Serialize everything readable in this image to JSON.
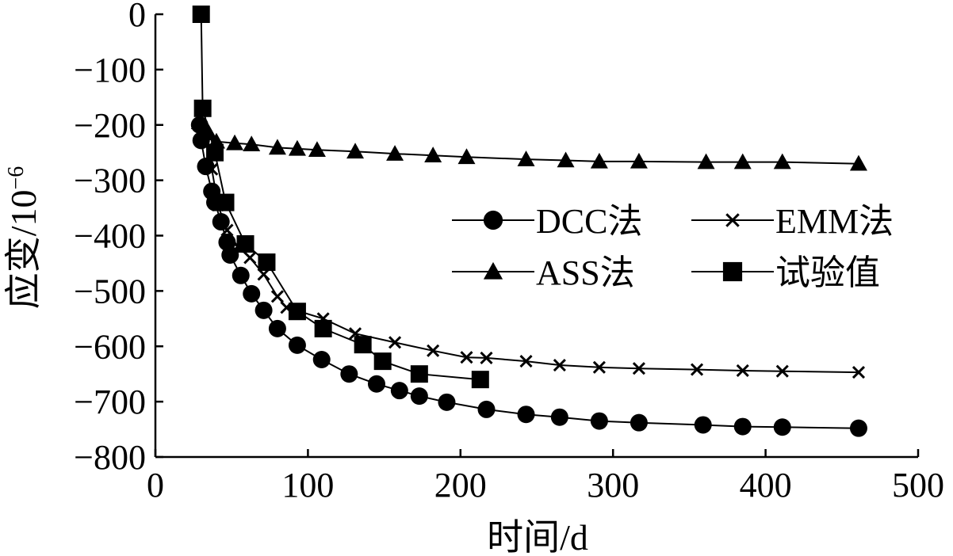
{
  "chart_data": {
    "type": "line",
    "xlabel": "时间/d",
    "ylabel_base": "应变/10",
    "ylabel_exp": "−6",
    "xlim": [
      0,
      500
    ],
    "ylim": [
      -800,
      0
    ],
    "x_ticks": [
      0,
      100,
      200,
      300,
      400,
      500
    ],
    "y_ticks": [
      0,
      -100,
      -200,
      -300,
      -400,
      -500,
      -600,
      -700,
      -800
    ],
    "x_tick_labels": [
      "0",
      "100",
      "200",
      "300",
      "400",
      "500"
    ],
    "y_tick_labels": [
      "0",
      "−100",
      "−200",
      "−300",
      "−400",
      "−500",
      "−600",
      "−700",
      "−800"
    ],
    "grid": false,
    "legend_position": "center-right",
    "series": [
      {
        "name": "DCC法",
        "marker": "circle",
        "color": "#000000",
        "points": [
          [
            29,
            -200
          ],
          [
            30,
            -228
          ],
          [
            33,
            -275
          ],
          [
            37,
            -320
          ],
          [
            39,
            -340
          ],
          [
            43,
            -375
          ],
          [
            47,
            -412
          ],
          [
            49,
            -435
          ],
          [
            56,
            -472
          ],
          [
            63,
            -505
          ],
          [
            71,
            -535
          ],
          [
            80,
            -568
          ],
          [
            93,
            -598
          ],
          [
            109,
            -624
          ],
          [
            127,
            -650
          ],
          [
            145,
            -668
          ],
          [
            160,
            -680
          ],
          [
            173,
            -690
          ],
          [
            191,
            -701
          ],
          [
            217,
            -714
          ],
          [
            243,
            -723
          ],
          [
            265,
            -728
          ],
          [
            291,
            -735
          ],
          [
            317,
            -738
          ],
          [
            359,
            -742
          ],
          [
            385,
            -745
          ],
          [
            411,
            -746
          ],
          [
            461,
            -748
          ]
        ]
      },
      {
        "name": "EMM法",
        "marker": "x",
        "color": "#000000",
        "points": [
          [
            29,
            -200
          ],
          [
            30,
            -210
          ],
          [
            33,
            -230
          ],
          [
            37,
            -280
          ],
          [
            41,
            -345
          ],
          [
            47,
            -390
          ],
          [
            54,
            -420
          ],
          [
            62,
            -440
          ],
          [
            71,
            -470
          ],
          [
            80,
            -510
          ],
          [
            86,
            -530
          ],
          [
            110,
            -550
          ],
          [
            131,
            -577
          ],
          [
            157,
            -593
          ],
          [
            182,
            -608
          ],
          [
            204,
            -620
          ],
          [
            217,
            -621
          ],
          [
            243,
            -627
          ],
          [
            265,
            -634
          ],
          [
            291,
            -638
          ],
          [
            317,
            -640
          ],
          [
            355,
            -642
          ],
          [
            385,
            -644
          ],
          [
            411,
            -645
          ],
          [
            461,
            -647
          ]
        ]
      },
      {
        "name": "ASS法",
        "marker": "triangle",
        "color": "#000000",
        "points": [
          [
            29,
            -195
          ],
          [
            33,
            -205
          ],
          [
            35,
            -215
          ],
          [
            40,
            -230
          ],
          [
            52,
            -233
          ],
          [
            63,
            -235
          ],
          [
            80,
            -241
          ],
          [
            93,
            -243
          ],
          [
            106,
            -245
          ],
          [
            131,
            -248
          ],
          [
            157,
            -252
          ],
          [
            182,
            -255
          ],
          [
            204,
            -258
          ],
          [
            243,
            -262
          ],
          [
            269,
            -264
          ],
          [
            291,
            -266
          ],
          [
            317,
            -266
          ],
          [
            361,
            -267
          ],
          [
            385,
            -267
          ],
          [
            411,
            -267
          ],
          [
            461,
            -270
          ]
        ]
      },
      {
        "name": "试验值",
        "marker": "square",
        "color": "#000000",
        "points": [
          [
            30,
            0
          ],
          [
            31,
            -170
          ],
          [
            39,
            -250
          ],
          [
            46,
            -340
          ],
          [
            59,
            -415
          ],
          [
            73,
            -448
          ],
          [
            93,
            -537
          ],
          [
            110,
            -568
          ],
          [
            136,
            -597
          ],
          [
            149,
            -627
          ],
          [
            173,
            -650
          ],
          [
            213,
            -660
          ]
        ]
      }
    ]
  }
}
